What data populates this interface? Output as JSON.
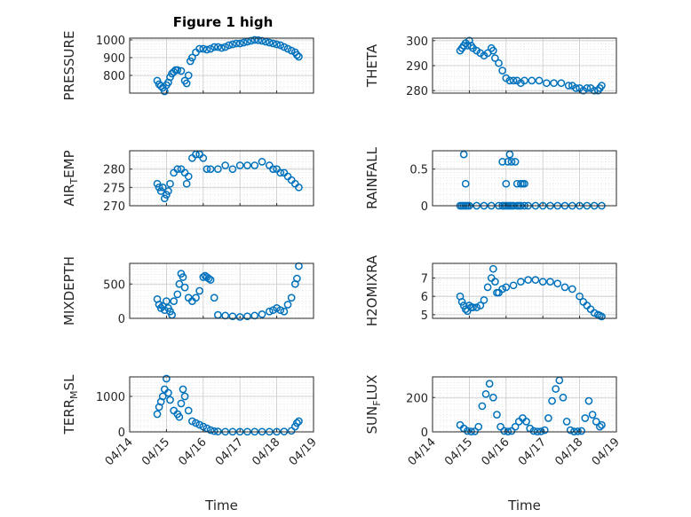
{
  "figure": {
    "title": "Figure 1 high"
  },
  "colors": {
    "marker": "#0072BD",
    "axis": "#262626",
    "grid": "#c8c8c8"
  },
  "chart_data": [
    {
      "type": "scatter",
      "ylabel": "PRESSURE",
      "title": "Figure 1 high",
      "yticks": [
        "800",
        "900",
        "1000"
      ],
      "ytick_values": [
        800,
        900,
        1000
      ],
      "ylim": [
        700,
        1010
      ],
      "xlim": [
        0,
        5
      ],
      "grid": true,
      "marker": "open-circle",
      "x": [
        0.75,
        0.8,
        0.85,
        0.9,
        0.95,
        1.0,
        1.05,
        1.1,
        1.15,
        1.2,
        1.25,
        1.3,
        1.4,
        1.5,
        1.55,
        1.6,
        1.65,
        1.7,
        1.8,
        1.9,
        2.0,
        2.1,
        2.2,
        2.3,
        2.4,
        2.5,
        2.6,
        2.7,
        2.8,
        2.9,
        3.0,
        3.1,
        3.2,
        3.3,
        3.4,
        3.5,
        3.6,
        3.7,
        3.8,
        3.9,
        4.0,
        4.1,
        4.2,
        4.3,
        4.4,
        4.5,
        4.55,
        4.6
      ],
      "y": [
        770,
        750,
        740,
        730,
        710,
        745,
        760,
        790,
        810,
        820,
        830,
        830,
        825,
        770,
        755,
        800,
        880,
        900,
        930,
        950,
        950,
        945,
        950,
        960,
        960,
        955,
        960,
        970,
        975,
        980,
        980,
        985,
        990,
        995,
        1000,
        998,
        995,
        990,
        985,
        980,
        975,
        970,
        960,
        950,
        940,
        930,
        915,
        905
      ]
    },
    {
      "type": "scatter",
      "ylabel": "THETA",
      "yticks": [
        "280",
        "290",
        "300"
      ],
      "ytick_values": [
        280,
        290,
        300
      ],
      "ylim": [
        279,
        301
      ],
      "xlim": [
        0,
        5
      ],
      "grid": true,
      "marker": "open-circle",
      "x": [
        0.75,
        0.8,
        0.85,
        0.9,
        0.95,
        1.0,
        1.05,
        1.1,
        1.2,
        1.3,
        1.4,
        1.5,
        1.6,
        1.65,
        1.7,
        1.8,
        1.9,
        2.0,
        2.1,
        2.2,
        2.3,
        2.4,
        2.5,
        2.7,
        2.9,
        3.1,
        3.3,
        3.5,
        3.7,
        3.8,
        3.9,
        4.0,
        4.1,
        4.2,
        4.3,
        4.4,
        4.5,
        4.55,
        4.6
      ],
      "y": [
        296,
        297,
        298,
        299,
        298,
        300,
        298,
        297,
        296,
        295,
        294,
        295,
        297,
        296,
        293,
        291,
        288,
        285,
        284,
        284,
        284,
        283,
        284,
        284,
        284,
        283,
        283,
        283,
        282,
        282,
        281,
        281,
        280,
        281,
        281,
        280,
        280,
        281,
        282
      ]
    },
    {
      "type": "scatter",
      "ylabel": "AIR_TEMP",
      "yticks": [
        "270",
        "275",
        "280"
      ],
      "ytick_values": [
        270,
        275,
        280
      ],
      "ylim": [
        270,
        285
      ],
      "xlim": [
        0,
        5
      ],
      "grid": true,
      "marker": "open-circle",
      "x": [
        0.75,
        0.8,
        0.85,
        0.9,
        0.95,
        1.0,
        1.05,
        1.1,
        1.2,
        1.3,
        1.4,
        1.5,
        1.55,
        1.6,
        1.7,
        1.8,
        1.9,
        2.0,
        2.1,
        2.2,
        2.4,
        2.6,
        2.8,
        3.0,
        3.2,
        3.4,
        3.6,
        3.8,
        3.9,
        4.0,
        4.1,
        4.2,
        4.3,
        4.4,
        4.5,
        4.6
      ],
      "y": [
        276,
        275,
        274,
        275,
        272,
        273,
        274,
        276,
        279,
        280,
        280,
        279,
        276,
        278,
        283,
        284,
        284,
        283,
        280,
        280,
        280,
        281,
        280,
        281,
        281,
        281,
        282,
        281,
        280,
        280,
        279,
        279,
        278,
        277,
        276,
        275
      ]
    },
    {
      "type": "scatter",
      "ylabel": "RAINFALL",
      "yticks": [
        "0",
        "0.5"
      ],
      "ytick_values": [
        0,
        0.5
      ],
      "ylim": [
        0,
        0.75
      ],
      "xlim": [
        0,
        5
      ],
      "grid": true,
      "marker": "open-circle",
      "x": [
        0.75,
        0.8,
        0.85,
        0.9,
        0.95,
        1.0,
        1.2,
        1.4,
        1.6,
        1.8,
        1.9,
        1.95,
        2.0,
        2.05,
        2.1,
        2.15,
        2.2,
        2.3,
        2.35,
        2.4,
        2.5,
        2.6,
        2.8,
        3.0,
        3.2,
        3.4,
        3.6,
        3.8,
        4.0,
        4.2,
        4.4,
        4.6,
        0.85,
        0.9,
        1.9,
        2.05,
        2.0,
        2.1,
        2.25,
        2.3,
        2.15,
        2.4,
        2.45,
        2.5
      ],
      "y": [
        0,
        0,
        0,
        0,
        0,
        0,
        0,
        0,
        0,
        0,
        0,
        0,
        0,
        0,
        0,
        0,
        0,
        0,
        0,
        0,
        0,
        0,
        0,
        0,
        0,
        0,
        0,
        0,
        0,
        0,
        0,
        0,
        0.7,
        0.3,
        0.6,
        0.6,
        0.3,
        0.7,
        0.6,
        0.3,
        0.6,
        0.3,
        0.3,
        0.3
      ]
    },
    {
      "type": "scatter",
      "ylabel": "MIXDEPTH",
      "yticks": [
        "0",
        "500"
      ],
      "ytick_values": [
        0,
        500
      ],
      "ylim": [
        0,
        800
      ],
      "xlim": [
        0,
        5
      ],
      "grid": true,
      "marker": "open-circle",
      "x": [
        0.75,
        0.8,
        0.85,
        0.9,
        0.95,
        1.0,
        1.05,
        1.1,
        1.15,
        1.2,
        1.3,
        1.35,
        1.4,
        1.45,
        1.5,
        1.6,
        1.7,
        1.8,
        1.9,
        2.0,
        2.05,
        2.1,
        2.15,
        2.2,
        2.3,
        2.4,
        2.6,
        2.8,
        3.0,
        3.2,
        3.4,
        3.6,
        3.8,
        3.9,
        4.0,
        4.1,
        4.2,
        4.3,
        4.4,
        4.5,
        4.55,
        4.6
      ],
      "y": [
        280,
        200,
        150,
        180,
        120,
        250,
        150,
        100,
        50,
        250,
        350,
        500,
        650,
        600,
        450,
        300,
        250,
        300,
        400,
        600,
        620,
        600,
        580,
        560,
        300,
        50,
        40,
        30,
        20,
        30,
        40,
        60,
        100,
        120,
        150,
        120,
        100,
        200,
        300,
        500,
        580,
        760
      ]
    },
    {
      "type": "scatter",
      "ylabel": "H2OMIXRA",
      "yticks": [
        "5",
        "6",
        "7"
      ],
      "ytick_values": [
        5,
        6,
        7
      ],
      "ylim": [
        4.8,
        7.8
      ],
      "xlim": [
        0,
        5
      ],
      "grid": true,
      "marker": "open-circle",
      "x": [
        0.75,
        0.8,
        0.85,
        0.9,
        0.95,
        1.0,
        1.05,
        1.1,
        1.2,
        1.3,
        1.4,
        1.5,
        1.6,
        1.65,
        1.7,
        1.75,
        1.8,
        1.9,
        2.0,
        2.2,
        2.4,
        2.6,
        2.8,
        3.0,
        3.2,
        3.4,
        3.6,
        3.8,
        4.0,
        4.1,
        4.2,
        4.3,
        4.4,
        4.5,
        4.55,
        4.6
      ],
      "y": [
        6.0,
        5.7,
        5.5,
        5.3,
        5.2,
        5.5,
        5.4,
        5.4,
        5.4,
        5.5,
        5.8,
        6.5,
        7.0,
        7.5,
        6.8,
        6.2,
        6.2,
        6.4,
        6.5,
        6.6,
        6.8,
        6.9,
        6.9,
        6.8,
        6.8,
        6.7,
        6.5,
        6.4,
        6.0,
        5.7,
        5.5,
        5.3,
        5.1,
        5.0,
        4.95,
        4.9
      ]
    },
    {
      "type": "scatter",
      "ylabel": "TERR_MSL",
      "yticks": [
        "0",
        "1000"
      ],
      "ytick_values": [
        0,
        1000
      ],
      "ylim": [
        0,
        1550
      ],
      "xlim": [
        0,
        5
      ],
      "grid": true,
      "marker": "open-circle",
      "xticks": [
        "04/14",
        "04/15",
        "04/16",
        "04/17",
        "04/18",
        "04/19"
      ],
      "xtick_values": [
        0,
        1,
        2,
        3,
        4,
        5
      ],
      "xlabel": "Time",
      "x": [
        0.75,
        0.8,
        0.85,
        0.9,
        0.95,
        1.0,
        1.05,
        1.1,
        1.2,
        1.3,
        1.35,
        1.4,
        1.45,
        1.5,
        1.6,
        1.7,
        1.8,
        1.9,
        2.0,
        2.1,
        2.2,
        2.3,
        2.4,
        2.6,
        2.8,
        3.0,
        3.2,
        3.4,
        3.6,
        3.8,
        4.0,
        4.2,
        4.4,
        4.5,
        4.55,
        4.6
      ],
      "y": [
        500,
        700,
        850,
        1000,
        1200,
        1500,
        1100,
        900,
        600,
        500,
        420,
        800,
        1200,
        1000,
        600,
        300,
        250,
        200,
        150,
        100,
        50,
        20,
        10,
        5,
        5,
        5,
        5,
        5,
        5,
        5,
        5,
        10,
        30,
        150,
        250,
        300
      ]
    },
    {
      "type": "scatter",
      "ylabel": "SUN_FLUX",
      "yticks": [
        "0",
        "200"
      ],
      "ytick_values": [
        0,
        200
      ],
      "ylim": [
        0,
        320
      ],
      "xlim": [
        0,
        5
      ],
      "grid": true,
      "marker": "open-circle",
      "xticks": [
        "04/14",
        "04/15",
        "04/16",
        "04/17",
        "04/18",
        "04/19"
      ],
      "xtick_values": [
        0,
        1,
        2,
        3,
        4,
        5
      ],
      "xlabel": "Time",
      "x": [
        0.75,
        0.85,
        0.95,
        1.05,
        1.15,
        1.25,
        1.35,
        1.45,
        1.55,
        1.65,
        1.75,
        1.85,
        1.95,
        2.05,
        2.15,
        2.25,
        2.35,
        2.45,
        2.55,
        2.65,
        2.75,
        2.85,
        2.95,
        3.05,
        3.15,
        3.25,
        3.35,
        3.45,
        3.55,
        3.65,
        3.75,
        3.85,
        3.95,
        4.05,
        4.15,
        4.25,
        4.35,
        4.45,
        4.55,
        4.6
      ],
      "y": [
        40,
        20,
        5,
        2,
        3,
        30,
        150,
        220,
        280,
        200,
        100,
        30,
        5,
        2,
        5,
        30,
        60,
        80,
        60,
        20,
        5,
        2,
        3,
        10,
        80,
        180,
        250,
        300,
        200,
        60,
        10,
        2,
        3,
        5,
        80,
        180,
        100,
        60,
        30,
        40
      ]
    }
  ]
}
